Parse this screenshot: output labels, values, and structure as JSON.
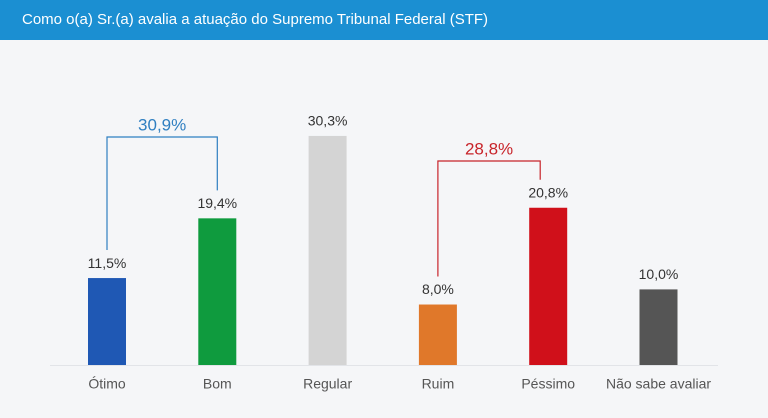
{
  "chart_data": {
    "type": "bar",
    "title": "Como o(a) Sr.(a) avalia a atuação do Supremo Tribunal Federal (STF)",
    "categories": [
      "Ótimo",
      "Bom",
      "Regular",
      "Ruim",
      "Péssimo",
      "Não sabe avaliar"
    ],
    "values": [
      11.5,
      19.4,
      30.3,
      8.0,
      20.8,
      10.0
    ],
    "value_labels": [
      "11,5%",
      "19,4%",
      "30,3%",
      "8,0%",
      "20,8%",
      "10,0%"
    ],
    "colors": [
      "#1f58b4",
      "#0f9b3e",
      "#d4d4d4",
      "#e0782a",
      "#d0101a",
      "#555555"
    ],
    "annotations": [
      {
        "value": 30.9,
        "label": "30,9%",
        "spans": [
          "Ótimo",
          "Bom"
        ],
        "color": "#2f7fc1"
      },
      {
        "value": 28.8,
        "label": "28,8%",
        "spans": [
          "Ruim",
          "Péssimo"
        ],
        "color": "#c8242a"
      }
    ]
  }
}
